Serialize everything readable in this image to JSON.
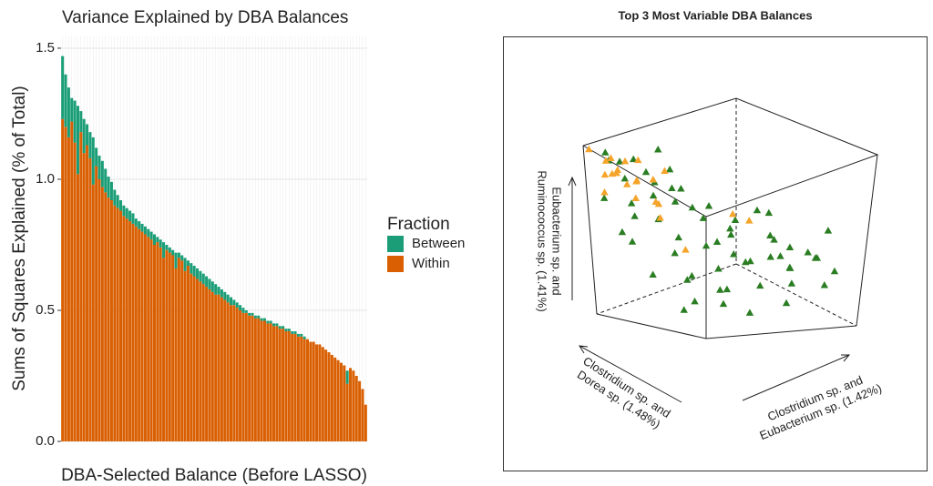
{
  "chart_data": [
    {
      "type": "stacked-bar",
      "title": "Variance Explained by DBA Balances",
      "x_label": "DBA-Selected Balance (Before LASSO)",
      "y_label": "Sums of Squares Explained (% of Total)",
      "legend_title": "Fraction",
      "grid": true,
      "ylim": [
        0,
        1.545
      ],
      "yticks": [
        {
          "value": 0,
          "label": "0.0"
        },
        0.5,
        {
          "value": 1,
          "label": "1.0"
        },
        1.5
      ],
      "categories": [
        null,
        null,
        null,
        null,
        null,
        null,
        null,
        null,
        null,
        null,
        null,
        null,
        null,
        null,
        null,
        null,
        null,
        null,
        null,
        null,
        null,
        null,
        null,
        null,
        null,
        null,
        null,
        null,
        null,
        null,
        null,
        null,
        null,
        null,
        null,
        null,
        null,
        null,
        null,
        null,
        null,
        null,
        null,
        null,
        null,
        null,
        null,
        null,
        null,
        null,
        null,
        null,
        null,
        null,
        null,
        null,
        null,
        null,
        null,
        null,
        null,
        null,
        null,
        null,
        null,
        null,
        null,
        null,
        null,
        null,
        null,
        null,
        null,
        null,
        null,
        null,
        null,
        null,
        null,
        null,
        null,
        null,
        null,
        null,
        null,
        null,
        null,
        null,
        null,
        null,
        null,
        null,
        null,
        null,
        null,
        null,
        null,
        null,
        null,
        null
      ],
      "series": [
        {
          "name": "Between",
          "color": "#1b9e77",
          "values": [
            0.24,
            0.2,
            0.19,
            0.09,
            0.16,
            0.26,
            0.08,
            0.13,
            0.08,
            0.1,
            0.18,
            0.07,
            0.09,
            0.1,
            0.09,
            0.08,
            0.07,
            0.06,
            0.05,
            0.04,
            0.04,
            0.04,
            0.04,
            0.04,
            0.03,
            0.03,
            0.03,
            0.03,
            0.03,
            0.03,
            0.04,
            0.02,
            0.03,
            0.06,
            0.02,
            0.02,
            0.02,
            0.06,
            0.02,
            0.02,
            0.05,
            0.02,
            0.04,
            0.04,
            0.04,
            0.04,
            0.04,
            0.04,
            0.04,
            0.04,
            0.04,
            0.03,
            0.03,
            0.03,
            0.03,
            0.03,
            0.02,
            0.02,
            0.02,
            0.02,
            0.01,
            0.01,
            0.01,
            0.01,
            0.01,
            0.01,
            0.01,
            0.01,
            0.01,
            0.01,
            0.01,
            0.01,
            0.01,
            0.01,
            0.01,
            0.01,
            0.01,
            0.01,
            0.01,
            0.01,
            0,
            0,
            0,
            0,
            0,
            0,
            0,
            0,
            0,
            0,
            0,
            0,
            0,
            0.05,
            0,
            0,
            0,
            0,
            0,
            0
          ]
        },
        {
          "name": "Within",
          "color": "#d95f02",
          "values": [
            1.23,
            1.2,
            1.16,
            1.22,
            1.14,
            1.02,
            1.18,
            1.1,
            1.13,
            1.08,
            0.98,
            1.05,
            1.0,
            0.97,
            0.95,
            0.93,
            0.92,
            0.9,
            0.89,
            0.88,
            0.86,
            0.85,
            0.84,
            0.83,
            0.82,
            0.81,
            0.8,
            0.79,
            0.78,
            0.77,
            0.75,
            0.76,
            0.74,
            0.7,
            0.73,
            0.72,
            0.71,
            0.66,
            0.7,
            0.69,
            0.65,
            0.67,
            0.64,
            0.63,
            0.62,
            0.61,
            0.6,
            0.59,
            0.58,
            0.57,
            0.56,
            0.56,
            0.55,
            0.54,
            0.53,
            0.52,
            0.52,
            0.51,
            0.5,
            0.49,
            0.49,
            0.48,
            0.48,
            0.47,
            0.47,
            0.46,
            0.46,
            0.45,
            0.45,
            0.44,
            0.44,
            0.43,
            0.43,
            0.42,
            0.42,
            0.41,
            0.41,
            0.4,
            0.4,
            0.39,
            0.39,
            0.38,
            0.38,
            0.37,
            0.37,
            0.36,
            0.35,
            0.34,
            0.33,
            0.32,
            0.31,
            0.3,
            0.29,
            0.22,
            0.28,
            0.27,
            0.25,
            0.23,
            0.2,
            0.14
          ]
        }
      ]
    },
    {
      "type": "scatter3d",
      "title": "Top 3 Most Variable DBA Balances",
      "x_label": [
        "Clostridium sp. and",
        "Eubacterium sp. (1.42%)"
      ],
      "y_label": [
        "Clostridium sp. and",
        "Dorea sp. (1.48%)"
      ],
      "z_label": [
        "Eubacterium sp. and",
        "Ruminococcus sp. (1.41%)"
      ],
      "xlim": [
        0,
        1
      ],
      "ylim": [
        0,
        1
      ],
      "zlim": [
        0,
        1
      ],
      "series": [
        {
          "color": "#2a7d22",
          "x": [
            0.05,
            0.1,
            0.15,
            0.2,
            0.12,
            0.25,
            0.3,
            0.08,
            0.2,
            0.35,
            0.4,
            0.15,
            0.3,
            0.45,
            0.5,
            0.25,
            0.55,
            0.6,
            0.4,
            0.7,
            0.65,
            0.5,
            0.75,
            0.8,
            0.6,
            0.85,
            0.9,
            0.7,
            0.55,
            0.45,
            0.8,
            0.95,
            0.65,
            0.35,
            0.75,
            0.9,
            0.5,
            0.6,
            0.85,
            0.4,
            0.3,
            0.1,
            0.18,
            0.05,
            0.7,
            0.95,
            0.98,
            0.88,
            0.3,
            0.5,
            0.2,
            0.6,
            0.75,
            0.55,
            0.85,
            0.4,
            0.25,
            0.15,
            0.65,
            0.45
          ],
          "y": [
            0.9,
            0.85,
            0.8,
            0.9,
            0.7,
            0.75,
            0.8,
            0.95,
            0.6,
            0.7,
            0.85,
            0.5,
            0.55,
            0.6,
            0.8,
            0.4,
            0.5,
            0.7,
            0.35,
            0.6,
            0.3,
            0.2,
            0.4,
            0.2,
            0.15,
            0.35,
            0.1,
            0.05,
            0.4,
            0.5,
            0.5,
            0.2,
            0.6,
            0.6,
            0.7,
            0.4,
            0.7,
            0.85,
            0.6,
            0.9,
            0.95,
            0.6,
            0.98,
            0.75,
            0.9,
            0.5,
            0.3,
            0.15,
            0.3,
            0.55,
            0.85,
            0.3,
            0.25,
            0.1,
            0.8,
            0.75,
            0.65,
            0.9,
            0.45,
            0.25
          ],
          "z": [
            0.95,
            0.9,
            0.92,
            0.85,
            0.8,
            0.8,
            0.75,
            0.7,
            0.7,
            0.7,
            0.65,
            0.65,
            0.6,
            0.6,
            0.55,
            0.55,
            0.5,
            0.5,
            0.5,
            0.45,
            0.45,
            0.4,
            0.4,
            0.4,
            0.35,
            0.35,
            0.3,
            0.3,
            0.3,
            0.25,
            0.25,
            0.25,
            0.2,
            0.2,
            0.15,
            0.15,
            0.1,
            0.1,
            0.1,
            0.3,
            0.5,
            0.9,
            0.98,
            0.6,
            0.35,
            0.5,
            0.45,
            0.55,
            0.4,
            0.45,
            0.6,
            0.6,
            0.2,
            0.2,
            0.3,
            0.4,
            0.85,
            0.5,
            0.35,
            0.55
          ]
        },
        {
          "color": "#f5a42a",
          "x": [
            0.02,
            0.05,
            0.1,
            0.03,
            0.08,
            0.12,
            0.06,
            0.15,
            0.02,
            0.2,
            0.25,
            0.1,
            0.3,
            0.35,
            0.45,
            0.5,
            0.3,
            0.45,
            0.05,
            0.4,
            0.55,
            0.15
          ],
          "y": [
            0.98,
            0.9,
            0.95,
            0.85,
            0.8,
            0.92,
            0.7,
            0.85,
            0.9,
            0.95,
            0.98,
            0.75,
            0.9,
            0.95,
            0.9,
            0.45,
            0.6,
            0.3,
            0.6,
            0.8,
            0.95,
            0.65
          ],
          "z": [
            0.98,
            0.9,
            0.85,
            0.8,
            0.88,
            0.95,
            0.85,
            0.78,
            0.7,
            0.9,
            0.95,
            0.75,
            0.88,
            0.8,
            0.8,
            0.6,
            0.35,
            0.5,
            0.7,
            0.95,
            0.75,
            0.6
          ]
        }
      ]
    }
  ]
}
